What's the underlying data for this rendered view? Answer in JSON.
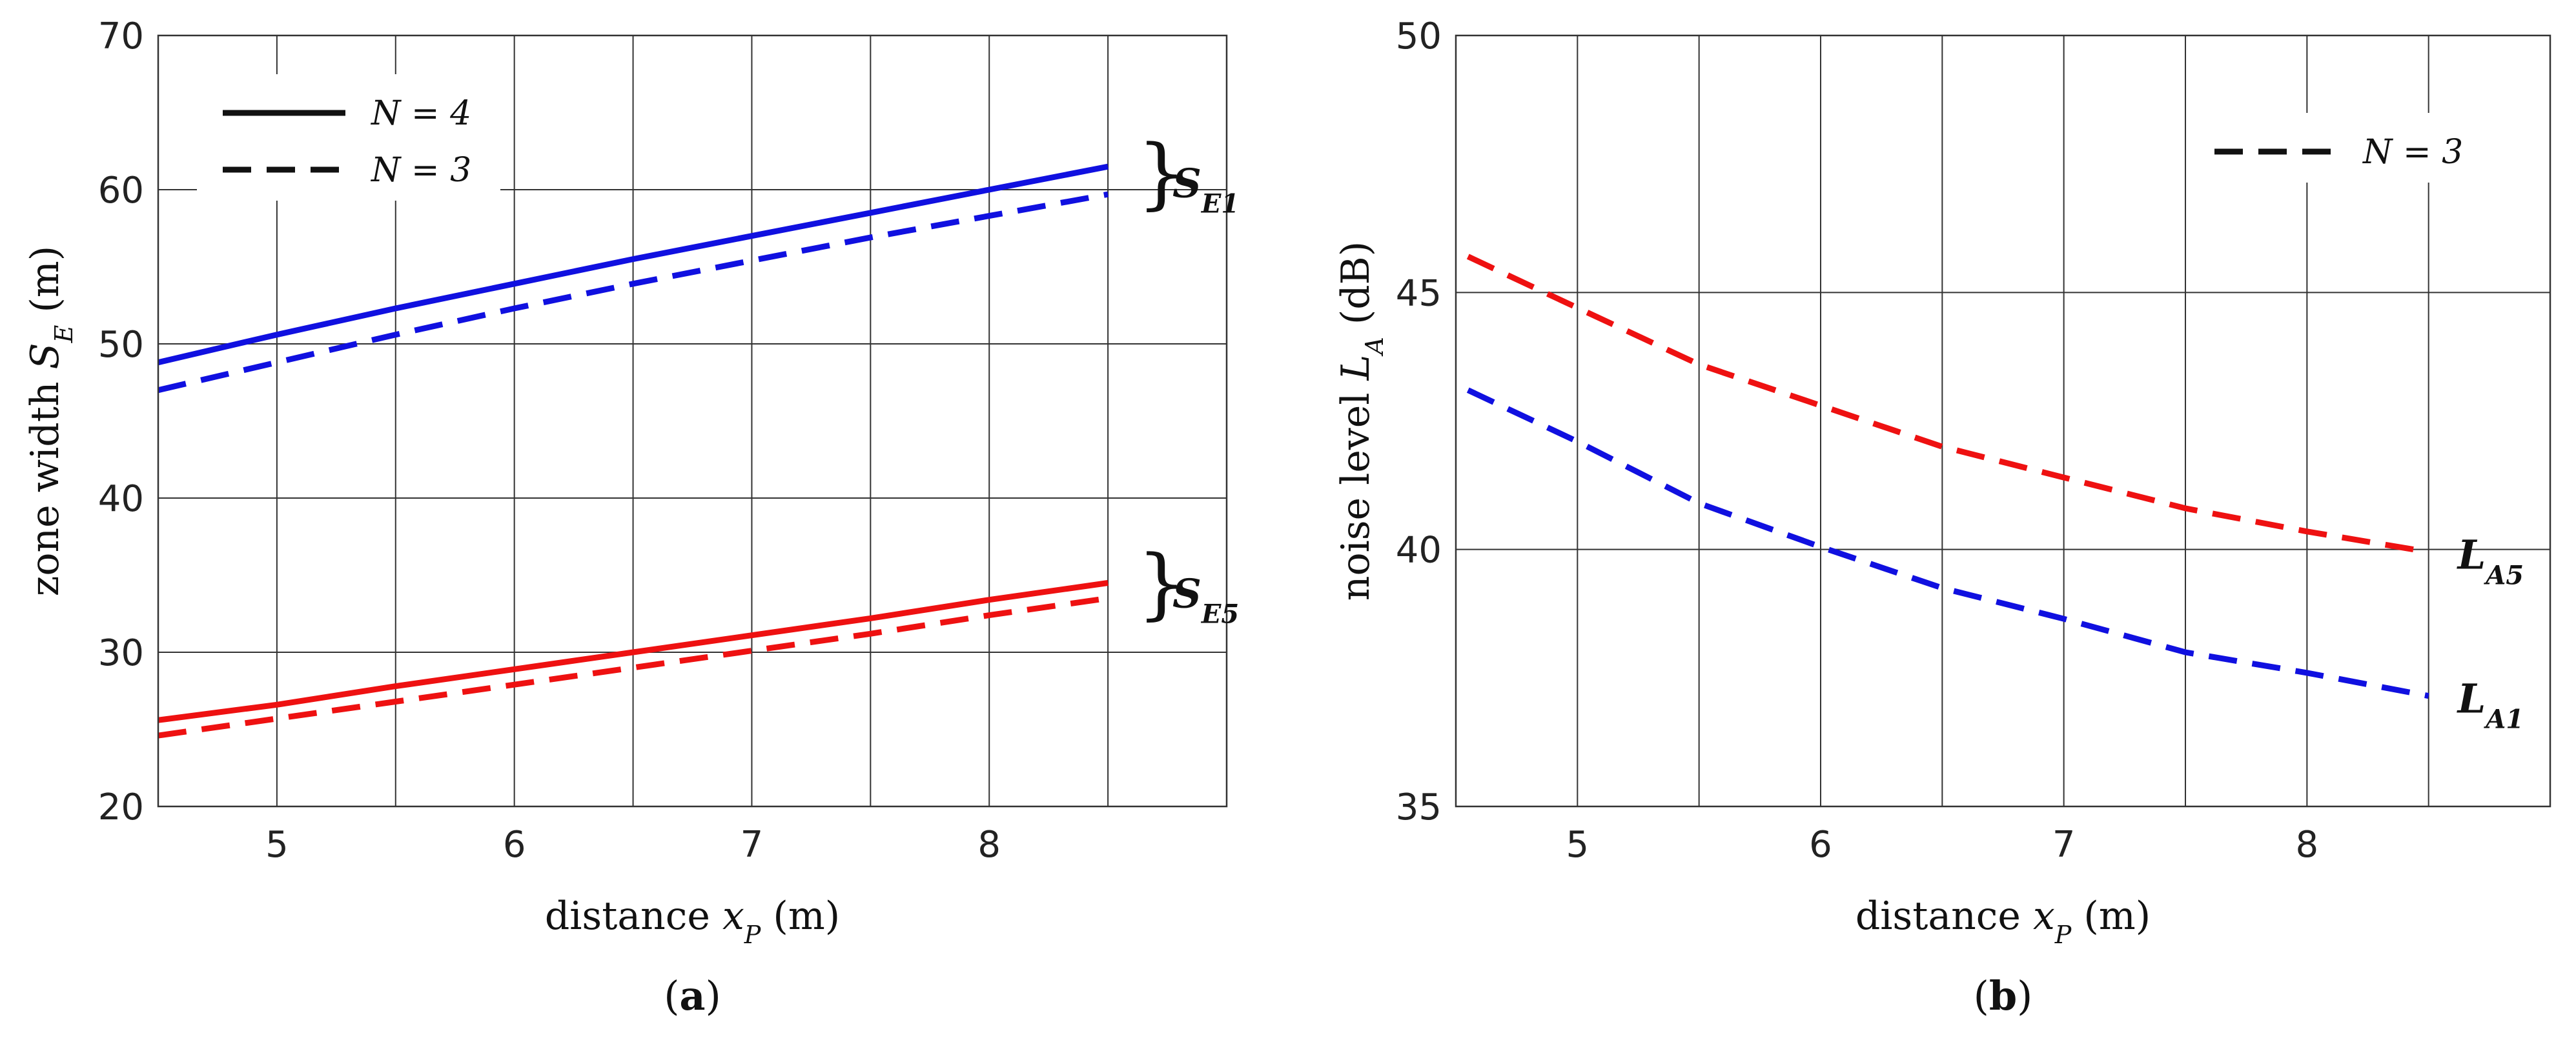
{
  "chart_data": [
    {
      "panel": "a",
      "type": "line",
      "panel_label": "a",
      "xlabel": {
        "prefix": "distance ",
        "var": "x",
        "sub": "P",
        "suffix": " (m)"
      },
      "ylabel": {
        "prefix": "zone width ",
        "var": "S",
        "sub": "E",
        "suffix": " (m)"
      },
      "xlim": [
        4.5,
        9.0
      ],
      "ylim": [
        20,
        70
      ],
      "xticks": [
        5,
        6,
        7,
        8
      ],
      "yticks": [
        20,
        30,
        40,
        50,
        60,
        70
      ],
      "grid_x": [
        5,
        5.5,
        6,
        6.5,
        7,
        7.5,
        8,
        8.5
      ],
      "grid_y": [
        30,
        40,
        50,
        60
      ],
      "legend": [
        {
          "label": "N = 4",
          "style": "solid"
        },
        {
          "label": "N = 3",
          "style": "dashed"
        }
      ],
      "legend_position": "top-left",
      "series": [
        {
          "name": "S_E1 N=4",
          "color": "#1010e0",
          "style": "solid",
          "x": [
            4.5,
            5.0,
            5.5,
            6.0,
            6.5,
            7.0,
            7.5,
            8.0,
            8.5
          ],
          "y": [
            48.8,
            50.6,
            52.3,
            53.9,
            55.5,
            57.0,
            58.5,
            60.0,
            61.5
          ]
        },
        {
          "name": "S_E1 N=3",
          "color": "#1010e0",
          "style": "dashed",
          "x": [
            4.5,
            5.0,
            5.5,
            6.0,
            6.5,
            7.0,
            7.5,
            8.0,
            8.5
          ],
          "y": [
            47.0,
            48.8,
            50.6,
            52.3,
            53.9,
            55.4,
            56.9,
            58.3,
            59.7
          ]
        },
        {
          "name": "S_E5 N=4",
          "color": "#ee1111",
          "style": "solid",
          "x": [
            4.5,
            5.0,
            5.5,
            6.0,
            6.5,
            7.0,
            7.5,
            8.0,
            8.5
          ],
          "y": [
            25.6,
            26.6,
            27.8,
            28.9,
            30.0,
            31.1,
            32.2,
            33.4,
            34.5
          ]
        },
        {
          "name": "S_E5 N=3",
          "color": "#ee1111",
          "style": "dashed",
          "x": [
            4.5,
            5.0,
            5.5,
            6.0,
            6.5,
            7.0,
            7.5,
            8.0,
            8.5
          ],
          "y": [
            24.6,
            25.7,
            26.8,
            27.9,
            29.0,
            30.1,
            31.2,
            32.4,
            33.5
          ]
        }
      ],
      "annotations": [
        {
          "main": "S",
          "sub": "E1",
          "y": 60.6
        },
        {
          "main": "S",
          "sub": "E5",
          "y": 34.0
        }
      ]
    },
    {
      "panel": "b",
      "type": "line",
      "panel_label": "b",
      "xlabel": {
        "prefix": "distance ",
        "var": "x",
        "sub": "P",
        "suffix": " (m)"
      },
      "ylabel": {
        "prefix": "noise level ",
        "var": "L",
        "sub": "A",
        "suffix": " (dB)"
      },
      "xlim": [
        4.5,
        9.0
      ],
      "ylim": [
        35,
        50
      ],
      "xticks": [
        5,
        6,
        7,
        8
      ],
      "yticks": [
        35,
        40,
        45,
        50
      ],
      "grid_x": [
        5,
        5.5,
        6,
        6.5,
        7,
        7.5,
        8,
        8.5
      ],
      "grid_y": [
        40,
        45
      ],
      "legend": [
        {
          "label": "N = 3",
          "style": "dashed"
        }
      ],
      "legend_position": "top-right",
      "series": [
        {
          "name": "L_A5",
          "color": "#ee1111",
          "style": "dashed",
          "x": [
            4.55,
            5.0,
            5.5,
            6.0,
            6.5,
            7.0,
            7.5,
            8.0,
            8.5
          ],
          "y": [
            45.7,
            44.7,
            43.6,
            42.8,
            42.0,
            41.4,
            40.8,
            40.35,
            39.95
          ]
        },
        {
          "name": "L_A1",
          "color": "#1010e0",
          "style": "dashed",
          "x": [
            4.55,
            5.0,
            5.5,
            6.0,
            6.5,
            7.0,
            7.5,
            8.0,
            8.5
          ],
          "y": [
            43.1,
            42.1,
            40.9,
            40.05,
            39.25,
            38.65,
            38.0,
            37.6,
            37.15
          ]
        }
      ],
      "annotations": [
        {
          "main": "L",
          "sub": "A5",
          "y": 39.95
        },
        {
          "main": "L",
          "sub": "A1",
          "y": 37.15
        }
      ]
    }
  ]
}
